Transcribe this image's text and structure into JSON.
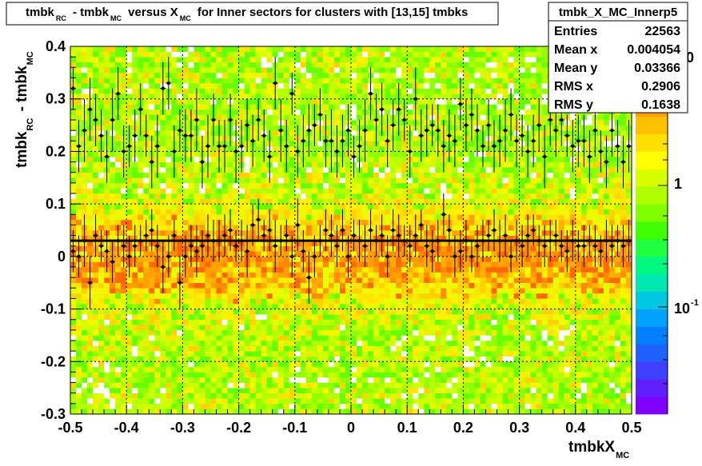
{
  "title": {
    "parts": [
      "tmbk",
      "RC",
      " - tmbk",
      "MC",
      " versus X",
      "MC",
      " for Inner sectors for clusters with [13,15] tmbks"
    ]
  },
  "stats": {
    "name": "tmbk_X_MC_Innerp5",
    "rows": [
      {
        "label": "Entries",
        "value": "22563"
      },
      {
        "label": "Mean x",
        "value": "0.004054"
      },
      {
        "label": "Mean y",
        "value": "0.03366"
      },
      {
        "label": "RMS x",
        "value": "0.2906"
      },
      {
        "label": "RMS y",
        "value": "0.1638"
      }
    ]
  },
  "axes": {
    "xlabel": {
      "main": "tmbkX",
      "sub": "MC"
    },
    "ylabel": {
      "main1": "tmbk",
      "sub1": "RC",
      "main2": " - tmbk",
      "sub2": "MC"
    },
    "xticks": [
      "-0.5",
      "-0.4",
      "-0.3",
      "-0.2",
      "-0.1",
      "0",
      "0.1",
      "0.2",
      "0.3",
      "0.4",
      "0.5"
    ],
    "yticks": [
      "-0.3",
      "-0.2",
      "-0.1",
      "0",
      "0.1",
      "0.2",
      "0.3",
      "0.4"
    ]
  },
  "palette": {
    "zlabels": [
      {
        "text": "1",
        "exp": ""
      },
      {
        "text": "10",
        "exp": "-1"
      },
      {
        "text": "0",
        "exp": ""
      }
    ],
    "colors": [
      "#7f00ff",
      "#5f20ff",
      "#3f40ff",
      "#1f60ff",
      "#0080ff",
      "#00a0ff",
      "#00c8e0",
      "#00e8b0",
      "#00f880",
      "#20ff40",
      "#40ff00",
      "#80ff00",
      "#b0ff00",
      "#d8ff00",
      "#ffff00",
      "#ffe000",
      "#ffc000",
      "#ffa000",
      "#ff8000",
      "#ff6000",
      "#ff4000"
    ]
  },
  "chart_data": {
    "type": "heatmap",
    "xlim": [
      -0.5,
      0.5
    ],
    "ylim": [
      -0.3,
      0.4
    ],
    "grid": true,
    "zscale": "log",
    "profile": {
      "x": [
        -0.495,
        -0.485,
        -0.475,
        -0.465,
        -0.455,
        -0.445,
        -0.435,
        -0.425,
        -0.415,
        -0.405,
        -0.395,
        -0.385,
        -0.375,
        -0.365,
        -0.355,
        -0.345,
        -0.335,
        -0.325,
        -0.315,
        -0.305,
        -0.295,
        -0.285,
        -0.275,
        -0.265,
        -0.255,
        -0.245,
        -0.235,
        -0.225,
        -0.215,
        -0.205,
        -0.195,
        -0.185,
        -0.175,
        -0.165,
        -0.155,
        -0.145,
        -0.135,
        -0.125,
        -0.115,
        -0.105,
        -0.095,
        -0.085,
        -0.075,
        -0.065,
        -0.055,
        -0.045,
        -0.035,
        -0.025,
        -0.015,
        -0.005,
        0.005,
        0.015,
        0.025,
        0.035,
        0.045,
        0.055,
        0.065,
        0.075,
        0.085,
        0.095,
        0.105,
        0.115,
        0.125,
        0.135,
        0.145,
        0.155,
        0.165,
        0.175,
        0.185,
        0.195,
        0.205,
        0.215,
        0.225,
        0.235,
        0.245,
        0.255,
        0.265,
        0.275,
        0.285,
        0.295,
        0.305,
        0.315,
        0.325,
        0.335,
        0.345,
        0.355,
        0.365,
        0.375,
        0.385,
        0.395,
        0.405,
        0.415,
        0.425,
        0.435,
        0.445,
        0.455,
        0.465,
        0.475,
        0.485,
        0.495
      ],
      "y": [
        0.01,
        0.0,
        0.03,
        -0.05,
        0.04,
        0.02,
        0.01,
        -0.01,
        0.03,
        0.02,
        0.0,
        0.02,
        0.03,
        0.04,
        0.05,
        0.02,
        -0.02,
        0.0,
        0.04,
        -0.05,
        0.0,
        0.02,
        0.01,
        0.02,
        0.04,
        0.03,
        0.03,
        0.04,
        0.05,
        0.02,
        0.03,
        0.01,
        0.06,
        0.07,
        0.04,
        0.05,
        0.02,
        0.03,
        0.04,
        0.0,
        0.06,
        0.01,
        -0.04,
        0.0,
        0.03,
        0.05,
        0.04,
        0.02,
        0.05,
        0.0,
        0.04,
        0.03,
        0.02,
        0.05,
        0.03,
        0.04,
        0.0,
        0.05,
        0.04,
        0.03,
        0.02,
        0.04,
        0.06,
        0.02,
        0.01,
        0.03,
        0.08,
        0.05,
        0.0,
        0.01,
        0.03,
        0.0,
        0.02,
        0.03,
        0.04,
        0.05,
        0.03,
        0.04,
        0.0,
        0.03,
        0.02,
        0.04,
        0.05,
        0.03,
        0.02,
        0.03,
        0.04,
        0.02,
        0.01,
        0.03,
        0.02,
        0.02,
        0.03,
        0.02,
        0.01,
        0.03,
        0.02,
        0.03,
        0.02,
        0.03
      ],
      "yerr": [
        0.04,
        0.04,
        0.05,
        0.05,
        0.04,
        0.03,
        0.04,
        0.04,
        0.03,
        0.04,
        0.04,
        0.04,
        0.03,
        0.03,
        0.04,
        0.04,
        0.05,
        0.04,
        0.03,
        0.05,
        0.04,
        0.04,
        0.05,
        0.03,
        0.04,
        0.04,
        0.04,
        0.04,
        0.04,
        0.03,
        0.04,
        0.05,
        0.04,
        0.04,
        0.03,
        0.04,
        0.05,
        0.03,
        0.03,
        0.04,
        0.05,
        0.04,
        0.05,
        0.04,
        0.03,
        0.04,
        0.04,
        0.04,
        0.04,
        0.04,
        0.03,
        0.04,
        0.04,
        0.04,
        0.03,
        0.04,
        0.04,
        0.04,
        0.04,
        0.03,
        0.04,
        0.04,
        0.03,
        0.04,
        0.04,
        0.04,
        0.04,
        0.03,
        0.04,
        0.04,
        0.04,
        0.03,
        0.04,
        0.04,
        0.03,
        0.04,
        0.04,
        0.04,
        0.03,
        0.04,
        0.04,
        0.04,
        0.03,
        0.03,
        0.04,
        0.04,
        0.03,
        0.03,
        0.04,
        0.04,
        0.03,
        0.04,
        0.03,
        0.04,
        0.03,
        0.04,
        0.04,
        0.03,
        0.04,
        0.04
      ]
    },
    "upper_points": {
      "x": [
        -0.495,
        -0.485,
        -0.475,
        -0.465,
        -0.455,
        -0.445,
        -0.435,
        -0.425,
        -0.415,
        -0.405,
        -0.395,
        -0.385,
        -0.375,
        -0.365,
        -0.355,
        -0.345,
        -0.335,
        -0.325,
        -0.315,
        -0.305,
        -0.295,
        -0.285,
        -0.275,
        -0.265,
        -0.255,
        -0.245,
        -0.235,
        -0.225,
        -0.215,
        -0.205,
        -0.195,
        -0.185,
        -0.175,
        -0.165,
        -0.155,
        -0.145,
        -0.135,
        -0.125,
        -0.115,
        -0.105,
        -0.095,
        -0.085,
        -0.075,
        -0.065,
        -0.055,
        -0.045,
        -0.035,
        -0.025,
        -0.015,
        -0.005,
        0.005,
        0.015,
        0.025,
        0.035,
        0.045,
        0.055,
        0.065,
        0.075,
        0.085,
        0.095,
        0.105,
        0.115,
        0.125,
        0.135,
        0.145,
        0.155,
        0.165,
        0.175,
        0.185,
        0.195,
        0.205,
        0.215,
        0.225,
        0.235,
        0.245,
        0.255,
        0.265,
        0.275,
        0.285,
        0.295,
        0.305,
        0.315,
        0.325,
        0.335,
        0.345,
        0.355,
        0.365,
        0.375,
        0.385,
        0.395,
        0.405,
        0.415,
        0.425,
        0.435,
        0.445,
        0.455,
        0.465,
        0.475,
        0.485,
        0.495
      ],
      "y": [
        0.32,
        0.21,
        0.24,
        0.28,
        0.26,
        0.23,
        0.19,
        0.26,
        0.31,
        0.2,
        0.21,
        0.23,
        0.28,
        0.23,
        0.18,
        0.21,
        0.32,
        0.33,
        0.2,
        0.24,
        0.23,
        0.23,
        0.26,
        0.18,
        0.21,
        0.26,
        0.21,
        0.21,
        0.26,
        0.2,
        0.21,
        0.25,
        0.22,
        0.26,
        0.23,
        0.19,
        0.33,
        0.24,
        0.21,
        0.31,
        0.2,
        0.22,
        0.24,
        0.25,
        0.27,
        0.22,
        0.22,
        0.2,
        0.22,
        0.24,
        0.19,
        0.21,
        0.24,
        0.31,
        0.26,
        0.28,
        0.22,
        0.25,
        0.28,
        0.26,
        0.2,
        0.3,
        0.23,
        0.24,
        0.25,
        0.24,
        0.21,
        0.23,
        0.22,
        0.29,
        0.25,
        0.27,
        0.24,
        0.21,
        0.25,
        0.21,
        0.22,
        0.24,
        0.27,
        0.22,
        0.23,
        0.2,
        0.22,
        0.25,
        0.19,
        0.26,
        0.24,
        0.26,
        0.23,
        0.21,
        0.22,
        0.22,
        0.19,
        0.24,
        0.2,
        0.18,
        0.24,
        0.21,
        0.18,
        0.21
      ],
      "yerr": [
        0.04,
        0.05,
        0.06,
        0.06,
        0.05,
        0.05,
        0.05,
        0.06,
        0.05,
        0.05,
        0.04,
        0.05,
        0.05,
        0.04,
        0.05,
        0.06,
        0.05,
        0.05,
        0.05,
        0.04,
        0.05,
        0.05,
        0.06,
        0.05,
        0.06,
        0.05,
        0.05,
        0.05,
        0.05,
        0.06,
        0.05,
        0.05,
        0.05,
        0.04,
        0.05,
        0.05,
        0.05,
        0.06,
        0.05,
        0.04,
        0.05,
        0.05,
        0.05,
        0.04,
        0.05,
        0.05,
        0.06,
        0.05,
        0.05,
        0.05,
        0.04,
        0.05,
        0.06,
        0.05,
        0.05,
        0.05,
        0.05,
        0.05,
        0.05,
        0.04,
        0.05,
        0.06,
        0.05,
        0.05,
        0.04,
        0.05,
        0.05,
        0.05,
        0.05,
        0.05,
        0.05,
        0.05,
        0.05,
        0.04,
        0.05,
        0.05,
        0.05,
        0.06,
        0.05,
        0.05,
        0.04,
        0.05,
        0.05,
        0.05,
        0.06,
        0.05,
        0.05,
        0.05,
        0.04,
        0.05,
        0.05,
        0.05,
        0.05,
        0.05,
        0.04,
        0.05,
        0.05,
        0.05,
        0.05,
        0.05
      ]
    },
    "fit_line": {
      "y": 0.03
    }
  }
}
